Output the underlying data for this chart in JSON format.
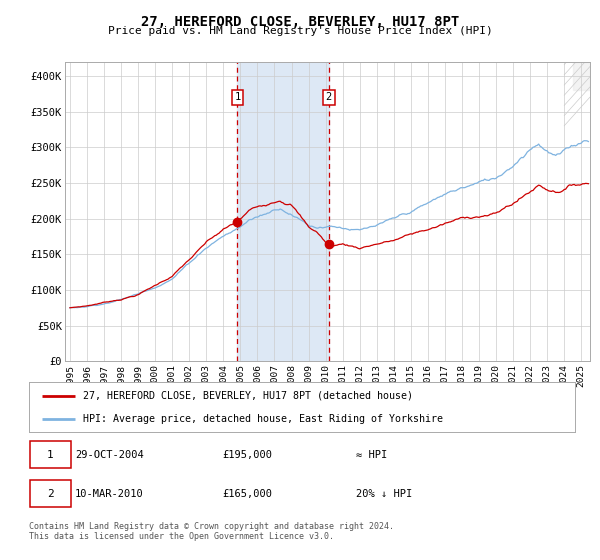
{
  "title": "27, HEREFORD CLOSE, BEVERLEY, HU17 8PT",
  "subtitle": "Price paid vs. HM Land Registry's House Price Index (HPI)",
  "hpi_color": "#7fb3e0",
  "price_color": "#cc0000",
  "shade_color": "#dde8f5",
  "dashed_color": "#cc0000",
  "ylim": [
    0,
    420000
  ],
  "yticks": [
    0,
    50000,
    100000,
    150000,
    200000,
    250000,
    300000,
    350000,
    400000
  ],
  "ytick_labels": [
    "£0",
    "£50K",
    "£100K",
    "£150K",
    "£200K",
    "£250K",
    "£300K",
    "£350K",
    "£400K"
  ],
  "xlim_start": 1994.7,
  "xlim_end": 2025.5,
  "xticks": [
    1995,
    1996,
    1997,
    1998,
    1999,
    2000,
    2001,
    2002,
    2003,
    2004,
    2005,
    2006,
    2007,
    2008,
    2009,
    2010,
    2011,
    2012,
    2013,
    2014,
    2015,
    2016,
    2017,
    2018,
    2019,
    2020,
    2021,
    2022,
    2023,
    2024,
    2025
  ],
  "transaction1_date": 2004.83,
  "transaction1_price": 195000,
  "transaction2_date": 2010.19,
  "transaction2_price": 165000,
  "shade_start": 2004.83,
  "shade_end": 2010.19,
  "legend_label1": "27, HEREFORD CLOSE, BEVERLEY, HU17 8PT (detached house)",
  "legend_label2": "HPI: Average price, detached house, East Riding of Yorkshire",
  "note1_num": "1",
  "note1_date": "29-OCT-2004",
  "note1_price": "£195,000",
  "note1_hpi": "≈ HPI",
  "note2_num": "2",
  "note2_date": "10-MAR-2010",
  "note2_price": "£165,000",
  "note2_hpi": "20% ↓ HPI",
  "footer": "Contains HM Land Registry data © Crown copyright and database right 2024.\nThis data is licensed under the Open Government Licence v3.0.",
  "bg_color": "#ffffff",
  "grid_color": "#cccccc"
}
